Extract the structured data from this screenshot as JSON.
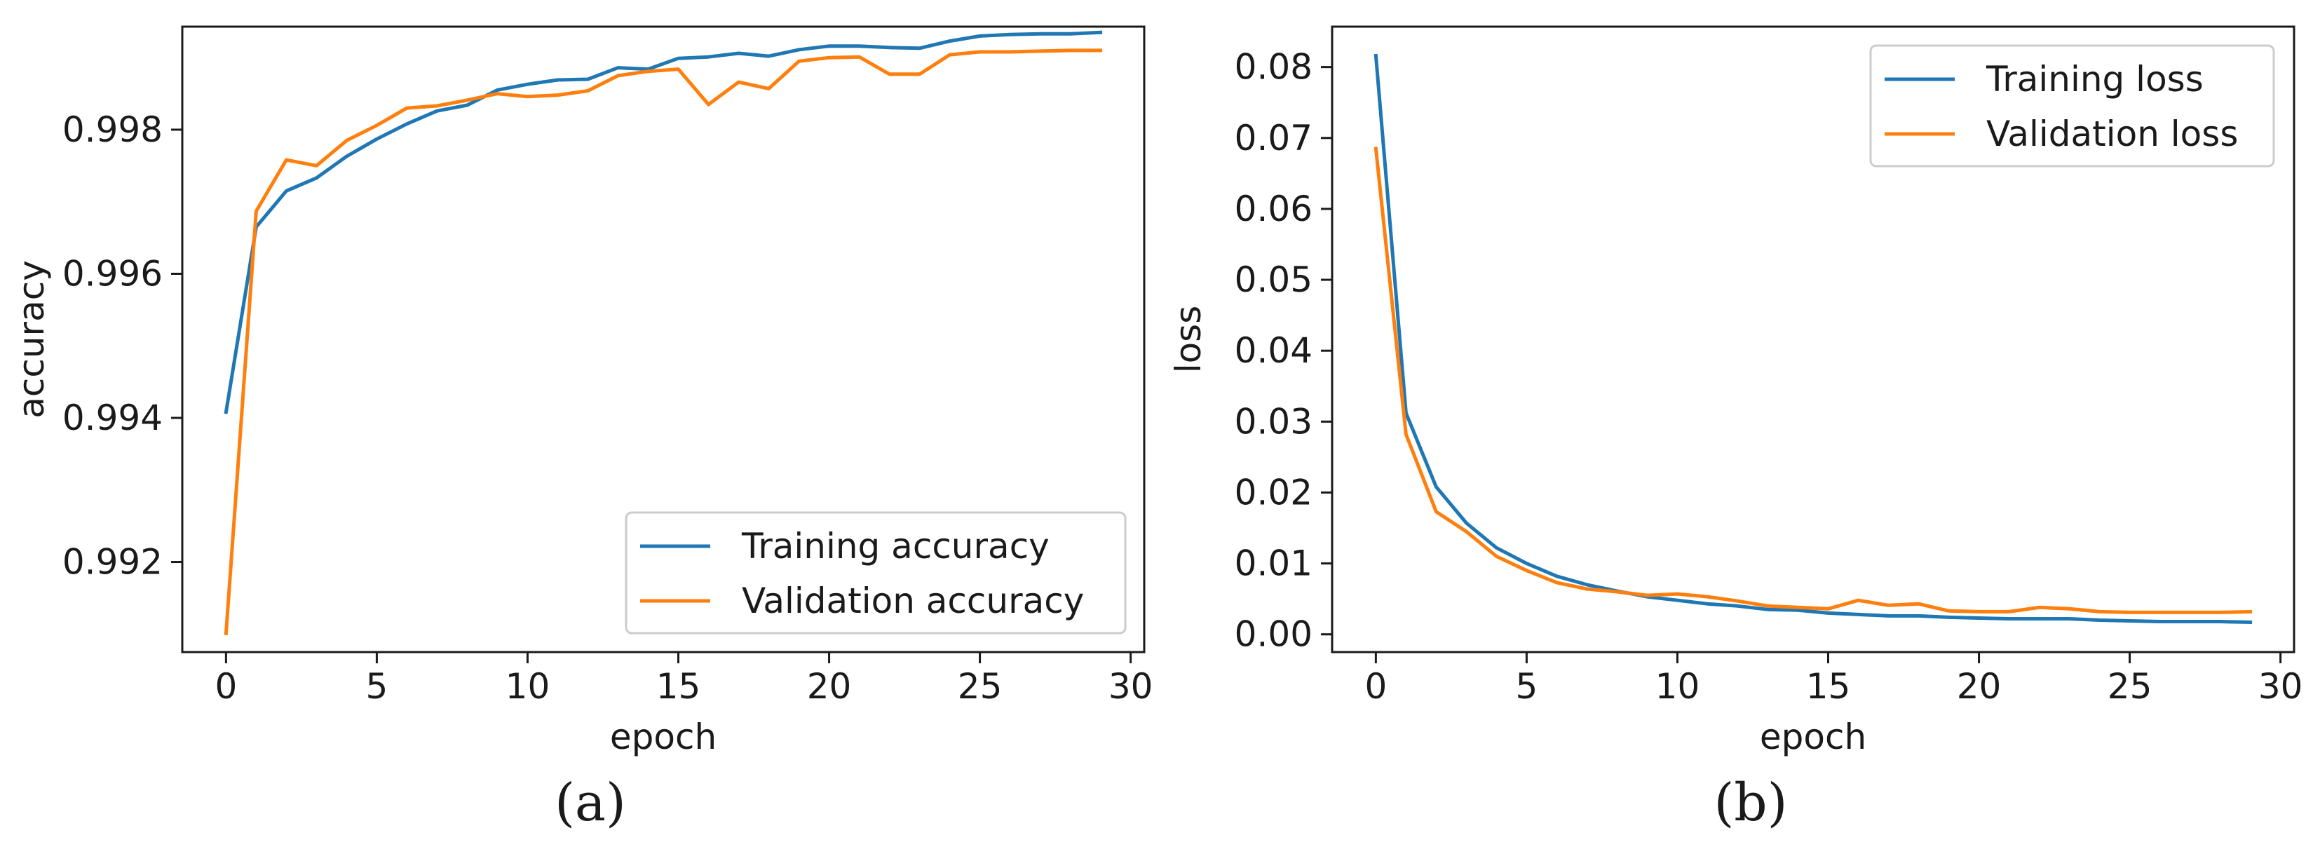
{
  "chart_data": [
    {
      "type": "line",
      "caption": "(a)",
      "xlabel": "epoch",
      "ylabel": "accuracy",
      "xlim": [
        -1.45,
        30.45
      ],
      "ylim": [
        0.99075,
        0.99943
      ],
      "xticks": [
        0,
        5,
        10,
        15,
        20,
        25,
        30
      ],
      "xtick_labels": [
        "0",
        "5",
        "10",
        "15",
        "20",
        "25",
        "30"
      ],
      "yticks": [
        0.992,
        0.994,
        0.996,
        0.998
      ],
      "ytick_labels": [
        "0.992",
        "0.994",
        "0.996",
        "0.998"
      ],
      "legend_position": "lower-right",
      "grid": false,
      "x": [
        0,
        1,
        2,
        3,
        4,
        5,
        6,
        7,
        8,
        9,
        10,
        11,
        12,
        13,
        14,
        15,
        16,
        17,
        18,
        19,
        20,
        21,
        22,
        23,
        24,
        25,
        26,
        27,
        28,
        29
      ],
      "series": [
        {
          "name": "Training accuracy",
          "color": "#1f77b4",
          "values": [
            0.99408,
            0.99665,
            0.99715,
            0.99733,
            0.99763,
            0.99787,
            0.99808,
            0.99826,
            0.99834,
            0.99855,
            0.99863,
            0.99869,
            0.9987,
            0.99886,
            0.99884,
            0.99899,
            0.99901,
            0.99906,
            0.99902,
            0.99911,
            0.99916,
            0.99916,
            0.99914,
            0.99913,
            0.99923,
            0.9993,
            0.99932,
            0.99933,
            0.99933,
            0.99935
          ]
        },
        {
          "name": "Validation accuracy",
          "color": "#ff7f0e",
          "values": [
            0.99101,
            0.99687,
            0.99758,
            0.9975,
            0.99785,
            0.99806,
            0.9983,
            0.99833,
            0.99841,
            0.9985,
            0.99846,
            0.99848,
            0.99854,
            0.99875,
            0.99881,
            0.99884,
            0.99835,
            0.99866,
            0.99857,
            0.99895,
            0.999,
            0.99901,
            0.99877,
            0.99877,
            0.99904,
            0.99908,
            0.99908,
            0.99909,
            0.9991,
            0.9991
          ]
        }
      ]
    },
    {
      "type": "line",
      "caption": "(b)",
      "xlabel": "epoch",
      "ylabel": "loss",
      "xlim": [
        -1.45,
        30.45
      ],
      "ylim": [
        -0.0025,
        0.0857
      ],
      "xticks": [
        0,
        5,
        10,
        15,
        20,
        25,
        30
      ],
      "xtick_labels": [
        "0",
        "5",
        "10",
        "15",
        "20",
        "25",
        "30"
      ],
      "yticks": [
        0.0,
        0.01,
        0.02,
        0.03,
        0.04,
        0.05,
        0.06,
        0.07,
        0.08
      ],
      "ytick_labels": [
        "0.00",
        "0.01",
        "0.02",
        "0.03",
        "0.04",
        "0.05",
        "0.06",
        "0.07",
        "0.08"
      ],
      "legend_position": "upper-right",
      "grid": false,
      "x": [
        0,
        1,
        2,
        3,
        4,
        5,
        6,
        7,
        8,
        9,
        10,
        11,
        12,
        13,
        14,
        15,
        16,
        17,
        18,
        19,
        20,
        21,
        22,
        23,
        24,
        25,
        26,
        27,
        28,
        29
      ],
      "series": [
        {
          "name": "Training loss",
          "color": "#1f77b4",
          "values": [
            0.0816,
            0.0312,
            0.0208,
            0.0157,
            0.0122,
            0.01,
            0.0082,
            0.007,
            0.0061,
            0.0053,
            0.0048,
            0.0043,
            0.004,
            0.0035,
            0.0034,
            0.003,
            0.0028,
            0.0026,
            0.0026,
            0.0024,
            0.0023,
            0.0022,
            0.0022,
            0.0022,
            0.002,
            0.0019,
            0.0018,
            0.0018,
            0.0018,
            0.0017
          ]
        },
        {
          "name": "Validation loss",
          "color": "#ff7f0e",
          "values": [
            0.0685,
            0.0282,
            0.0173,
            0.0145,
            0.011,
            0.009,
            0.0073,
            0.0064,
            0.006,
            0.0055,
            0.0057,
            0.0053,
            0.0047,
            0.004,
            0.0038,
            0.0036,
            0.0048,
            0.0041,
            0.0043,
            0.0033,
            0.0032,
            0.0032,
            0.0038,
            0.0036,
            0.0032,
            0.0031,
            0.0031,
            0.0031,
            0.0031,
            0.0032
          ]
        }
      ]
    }
  ]
}
